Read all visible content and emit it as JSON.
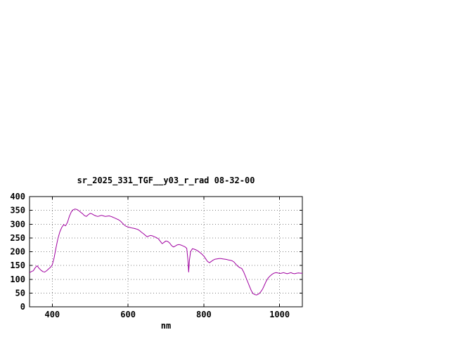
{
  "window": {
    "background": "#ffffff"
  },
  "chart_data": {
    "type": "line",
    "title": "sr_2025_331_TGF__y03_r_rad 08-32-00",
    "xlabel": "nm",
    "ylabel": "",
    "xlim": [
      340,
      1060
    ],
    "ylim": [
      0,
      400
    ],
    "xticks": [
      400,
      600,
      800,
      1000
    ],
    "yticks": [
      0,
      50,
      100,
      150,
      200,
      250,
      300,
      350,
      400
    ],
    "grid": true,
    "legend": "none",
    "line_color": "#a000a0",
    "axis_color": "#000000",
    "grid_color": "#808080",
    "series": [
      {
        "name": "sr_2025_331_TGF__y03_r_rad",
        "points": [
          [
            340,
            124
          ],
          [
            345,
            128
          ],
          [
            350,
            131
          ],
          [
            355,
            142
          ],
          [
            360,
            149
          ],
          [
            365,
            140
          ],
          [
            370,
            133
          ],
          [
            375,
            128
          ],
          [
            380,
            126
          ],
          [
            385,
            131
          ],
          [
            390,
            137
          ],
          [
            395,
            143
          ],
          [
            400,
            152
          ],
          [
            405,
            178
          ],
          [
            410,
            215
          ],
          [
            415,
            248
          ],
          [
            420,
            272
          ],
          [
            425,
            288
          ],
          [
            430,
            298
          ],
          [
            435,
            294
          ],
          [
            440,
            306
          ],
          [
            445,
            328
          ],
          [
            450,
            344
          ],
          [
            455,
            352
          ],
          [
            460,
            355
          ],
          [
            465,
            353
          ],
          [
            470,
            349
          ],
          [
            475,
            343
          ],
          [
            480,
            338
          ],
          [
            485,
            331
          ],
          [
            490,
            328
          ],
          [
            495,
            334
          ],
          [
            500,
            339
          ],
          [
            505,
            337
          ],
          [
            510,
            333
          ],
          [
            515,
            330
          ],
          [
            520,
            328
          ],
          [
            525,
            330
          ],
          [
            530,
            332
          ],
          [
            535,
            330
          ],
          [
            540,
            328
          ],
          [
            545,
            329
          ],
          [
            550,
            330
          ],
          [
            555,
            328
          ],
          [
            560,
            325
          ],
          [
            565,
            322
          ],
          [
            570,
            319
          ],
          [
            575,
            316
          ],
          [
            580,
            311
          ],
          [
            585,
            304
          ],
          [
            590,
            297
          ],
          [
            595,
            292
          ],
          [
            600,
            290
          ],
          [
            605,
            288
          ],
          [
            610,
            286
          ],
          [
            615,
            285
          ],
          [
            620,
            283
          ],
          [
            625,
            281
          ],
          [
            630,
            277
          ],
          [
            635,
            271
          ],
          [
            640,
            266
          ],
          [
            645,
            260
          ],
          [
            650,
            254
          ],
          [
            655,
            257
          ],
          [
            660,
            259
          ],
          [
            665,
            257
          ],
          [
            670,
            254
          ],
          [
            675,
            251
          ],
          [
            680,
            247
          ],
          [
            685,
            238
          ],
          [
            690,
            229
          ],
          [
            695,
            234
          ],
          [
            700,
            239
          ],
          [
            705,
            237
          ],
          [
            710,
            231
          ],
          [
            715,
            222
          ],
          [
            720,
            217
          ],
          [
            725,
            221
          ],
          [
            730,
            225
          ],
          [
            735,
            226
          ],
          [
            740,
            224
          ],
          [
            745,
            221
          ],
          [
            750,
            218
          ],
          [
            755,
            212
          ],
          [
            758,
            170
          ],
          [
            760,
            126
          ],
          [
            762,
            168
          ],
          [
            765,
            200
          ],
          [
            770,
            211
          ],
          [
            775,
            209
          ],
          [
            780,
            206
          ],
          [
            785,
            202
          ],
          [
            790,
            197
          ],
          [
            795,
            191
          ],
          [
            800,
            184
          ],
          [
            805,
            174
          ],
          [
            810,
            164
          ],
          [
            815,
            160
          ],
          [
            820,
            165
          ],
          [
            825,
            170
          ],
          [
            830,
            173
          ],
          [
            835,
            174
          ],
          [
            840,
            175
          ],
          [
            845,
            175
          ],
          [
            850,
            174
          ],
          [
            855,
            173
          ],
          [
            860,
            172
          ],
          [
            865,
            170
          ],
          [
            870,
            169
          ],
          [
            875,
            167
          ],
          [
            880,
            162
          ],
          [
            885,
            154
          ],
          [
            890,
            147
          ],
          [
            895,
            142
          ],
          [
            900,
            139
          ],
          [
            905,
            127
          ],
          [
            910,
            110
          ],
          [
            915,
            93
          ],
          [
            920,
            76
          ],
          [
            925,
            59
          ],
          [
            930,
            48
          ],
          [
            935,
            44
          ],
          [
            940,
            43
          ],
          [
            945,
            47
          ],
          [
            950,
            54
          ],
          [
            955,
            64
          ],
          [
            960,
            79
          ],
          [
            965,
            94
          ],
          [
            970,
            105
          ],
          [
            975,
            112
          ],
          [
            980,
            118
          ],
          [
            985,
            122
          ],
          [
            990,
            124
          ],
          [
            995,
            123
          ],
          [
            1000,
            121
          ],
          [
            1005,
            122
          ],
          [
            1010,
            124
          ],
          [
            1015,
            122
          ],
          [
            1020,
            120
          ],
          [
            1025,
            122
          ],
          [
            1030,
            124
          ],
          [
            1035,
            121
          ],
          [
            1040,
            120
          ],
          [
            1045,
            122
          ],
          [
            1050,
            123
          ],
          [
            1055,
            122
          ],
          [
            1060,
            122
          ]
        ]
      }
    ]
  }
}
